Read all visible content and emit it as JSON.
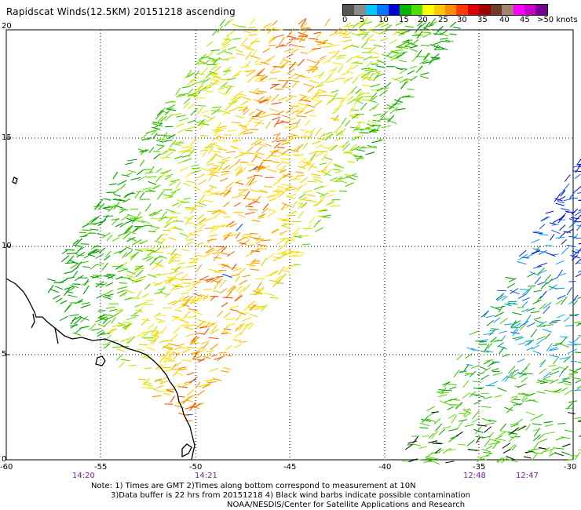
{
  "title": "Rapidscat Winds(12.5KM) 20151218 ascending",
  "legend": {
    "colors": [
      "#555555",
      "#8a8a8a",
      "#00c8ff",
      "#0078ff",
      "#0000dc",
      "#00b400",
      "#50dc00",
      "#ffff00",
      "#ffc800",
      "#ff8c00",
      "#ff3c00",
      "#e10000",
      "#a00000",
      "#6e3c28",
      "#a0826e",
      "#ff00ff",
      "#c800c8",
      "#780096"
    ],
    "labels": [
      "0",
      "5",
      "10",
      "15",
      "20",
      "25",
      "30",
      "35",
      "40",
      "45",
      ">50 knots"
    ]
  },
  "axes": {
    "lat_labels": [
      "20",
      "15",
      "10",
      "5",
      "0"
    ],
    "lon_labels": [
      "-60",
      "-55",
      "-50",
      "-45",
      "-40",
      "-35",
      "-30"
    ]
  },
  "times": [
    "14:20",
    "14:21",
    "12:48",
    "12:47"
  ],
  "notes": [
    "Note: 1) Times are GMT 2)Times along bottom correspond to measurement at 10N",
    "3)Data buffer is 22 hrs from 20151218 4) Black wind barbs indicate possible contamination",
    "NOAA/NESDIS/Center for Satellite Applications and Research"
  ]
}
